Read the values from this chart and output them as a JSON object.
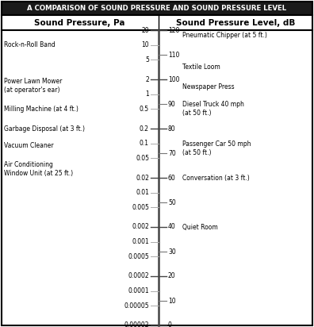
{
  "title": "A COMPARISON OF SOUND PRESSURE AND SOUND PRESSURE LEVEL",
  "left_header": "Sound Pressure, Pa",
  "right_header": "Sound Pressure Level, dB",
  "background_color": "#ffffff",
  "title_bg_color": "#1a1a1a",
  "title_text_color": "#ffffff",
  "border_color": "#000000",
  "left_ticks": [
    {
      "label": "20",
      "pa": 20.0
    },
    {
      "label": "10",
      "pa": 10.0
    },
    {
      "label": "5",
      "pa": 5.0
    },
    {
      "label": "2",
      "pa": 2.0
    },
    {
      "label": "1",
      "pa": 1.0
    },
    {
      "label": "0.5",
      "pa": 0.5
    },
    {
      "label": "0.2",
      "pa": 0.2
    },
    {
      "label": "0.1",
      "pa": 0.1
    },
    {
      "label": "0.05",
      "pa": 0.05
    },
    {
      "label": "0.02",
      "pa": 0.02
    },
    {
      "label": "0.01",
      "pa": 0.01
    },
    {
      "label": "0.005",
      "pa": 0.005
    },
    {
      "label": "0.002",
      "pa": 0.002
    },
    {
      "label": "0.001",
      "pa": 0.001
    },
    {
      "label": "0.0005",
      "pa": 0.0005
    },
    {
      "label": "0.0002",
      "pa": 0.0002
    },
    {
      "label": "0.0001",
      "pa": 0.0001
    },
    {
      "label": "0.00005",
      "pa": 5e-05
    },
    {
      "label": "0.00002",
      "pa": 2e-05
    }
  ],
  "right_ticks_db": [
    120,
    110,
    100,
    90,
    80,
    70,
    60,
    50,
    40,
    30,
    20,
    10,
    0
  ],
  "left_labels": [
    {
      "text": "Rock-n-Roll Band",
      "pa": 10.0
    },
    {
      "text": "Power Lawn Mower\n(at operator's ear)",
      "pa": 1.5
    },
    {
      "text": "Milling Machine (at 4 ft.)",
      "pa": 0.5
    },
    {
      "text": "Garbage Disposal (at 3 ft.)",
      "pa": 0.2
    },
    {
      "text": "Vacuum Cleaner",
      "pa": 0.09
    },
    {
      "text": "Air Conditioning\nWindow Unit (at 25 ft.)",
      "pa": 0.03
    }
  ],
  "right_labels": [
    {
      "text": "Pneumatic Chipper (at 5 ft.)",
      "db": 118
    },
    {
      "text": "Textile Loom",
      "db": 105
    },
    {
      "text": "Newspaper Press",
      "db": 97
    },
    {
      "text": "Diesel Truck 40 mph\n(at 50 ft.)",
      "db": 88
    },
    {
      "text": "Passenger Car 50 mph\n(at 50 ft.)",
      "db": 72
    },
    {
      "text": "Conversation (at 3 ft.)",
      "db": 60
    },
    {
      "text": "Quiet Room",
      "db": 40
    }
  ],
  "pa_min": 2e-05,
  "pa_max": 20.0
}
